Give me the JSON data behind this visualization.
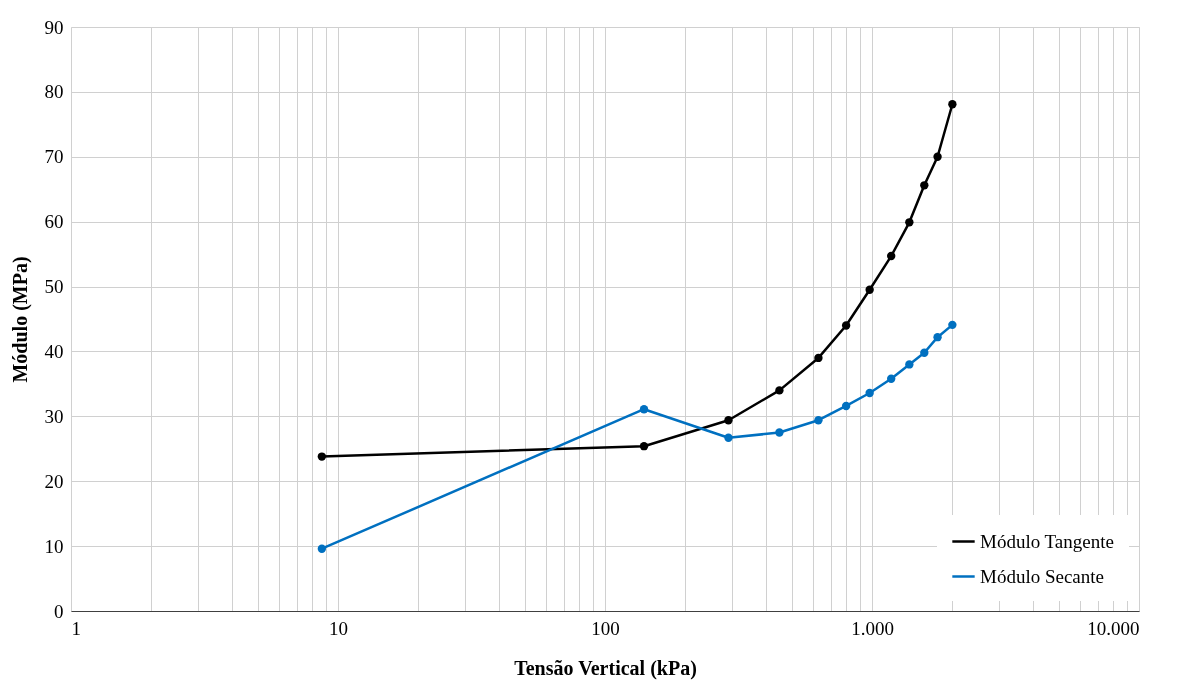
{
  "chart_data": {
    "type": "line",
    "xlabel": "Tensão Vertical (kPa)",
    "ylabel": "Módulo (MPa)",
    "log": "x",
    "grid": true,
    "legend": "bottom right",
    "marker": "circle",
    "line_style": "solid",
    "xlim": [
      1,
      10000
    ],
    "ylim": [
      0,
      90
    ],
    "xticks": [
      {
        "value": 1,
        "label": "1"
      },
      {
        "value": 2,
        "label": null
      },
      {
        "value": 3,
        "label": null
      },
      {
        "value": 4,
        "label": null
      },
      {
        "value": 5,
        "label": null
      },
      {
        "value": 6,
        "label": null
      },
      {
        "value": 7,
        "label": null
      },
      {
        "value": 8,
        "label": null
      },
      {
        "value": 9,
        "label": null
      },
      {
        "value": 10,
        "label": "10"
      },
      {
        "value": 20,
        "label": null
      },
      {
        "value": 30,
        "label": null
      },
      {
        "value": 40,
        "label": null
      },
      {
        "value": 50,
        "label": null
      },
      {
        "value": 60,
        "label": null
      },
      {
        "value": 70,
        "label": null
      },
      {
        "value": 80,
        "label": null
      },
      {
        "value": 90,
        "label": null
      },
      {
        "value": 100,
        "label": "100"
      },
      {
        "value": 200,
        "label": null
      },
      {
        "value": 300,
        "label": null
      },
      {
        "value": 400,
        "label": null
      },
      {
        "value": 500,
        "label": null
      },
      {
        "value": 600,
        "label": null
      },
      {
        "value": 700,
        "label": null
      },
      {
        "value": 800,
        "label": null
      },
      {
        "value": 900,
        "label": null
      },
      {
        "value": 1000,
        "label": "1.000"
      },
      {
        "value": 2000,
        "label": null
      },
      {
        "value": 3000,
        "label": null
      },
      {
        "value": 4000,
        "label": null
      },
      {
        "value": 5000,
        "label": null
      },
      {
        "value": 6000,
        "label": null
      },
      {
        "value": 7000,
        "label": null
      },
      {
        "value": 8000,
        "label": null
      },
      {
        "value": 9000,
        "label": null
      },
      {
        "value": 10000,
        "label": "10.000"
      }
    ],
    "yticks": [
      0,
      10,
      20,
      30,
      40,
      50,
      60,
      70,
      80,
      90
    ],
    "x": [
      8.7,
      140,
      290,
      450,
      630,
      800,
      980,
      1180,
      1380,
      1570,
      1760,
      2000
    ],
    "series": [
      {
        "name": "Módulo Tangente",
        "color": "#000000",
        "values": [
          23.8,
          25.4,
          29.4,
          34.0,
          39.0,
          44.0,
          49.5,
          54.7,
          59.9,
          65.6,
          70.0,
          78.1
        ]
      },
      {
        "name": "Módulo Secante",
        "color": "#0070c0",
        "values": [
          9.6,
          31.1,
          26.7,
          27.5,
          29.4,
          31.6,
          33.6,
          35.8,
          38.0,
          39.8,
          42.2,
          44.1
        ]
      }
    ]
  }
}
